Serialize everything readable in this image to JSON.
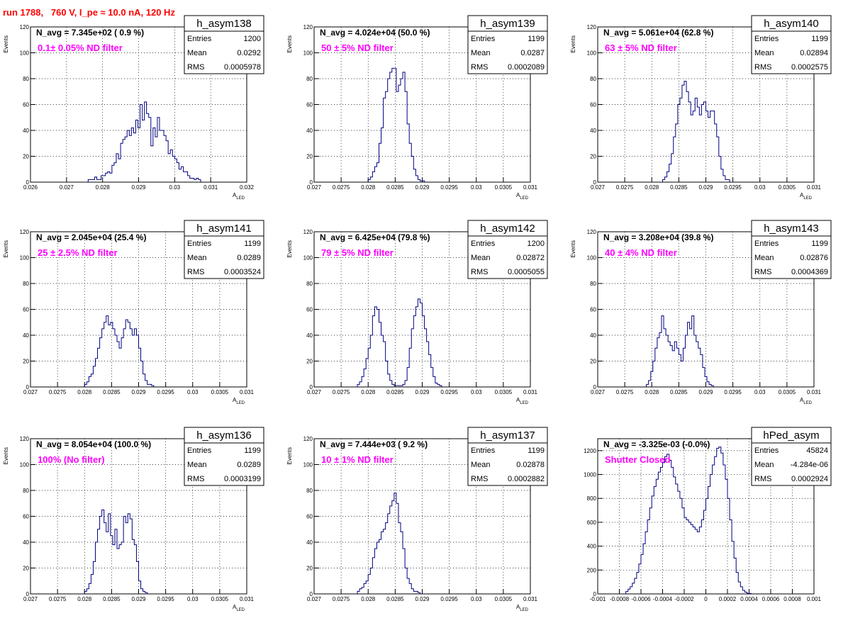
{
  "run_title": "run 1788,   760 V, I_pe ≈ 10.0 nA, 120 Hz",
  "colors": {
    "hist_line": "#000080",
    "title_red": "#ff0000",
    "annot_magenta": "#ff00ff",
    "grid": "#000000"
  },
  "chart_data": [
    {
      "type": "histogram",
      "name": "h_asym138",
      "stats": {
        "Entries": "1200",
        "Mean": "0.0292",
        "RMS": "0.0005978"
      },
      "annotation": "N_avg = 7.345e+02 ( 0.9 %)",
      "filter_label": "0.1± 0.05% ND filter",
      "ylabel": "Events",
      "xlabel": "A_LED",
      "xlim": [
        0.026,
        0.032
      ],
      "ylim": [
        0,
        120
      ],
      "xticks": [
        0.026,
        0.027,
        0.028,
        0.029,
        0.03,
        0.031,
        0.032
      ],
      "xtick_labels": [
        "0.026",
        "0.027",
        "0.028",
        "0.029",
        "0.03",
        "0.031",
        "0.032"
      ],
      "yticks": [
        0,
        20,
        40,
        60,
        80,
        100,
        120
      ],
      "x_start": 0.0276,
      "bin_width": 6e-05,
      "values": [
        2,
        2,
        2,
        4,
        2,
        2,
        5,
        5,
        7,
        8,
        7,
        13,
        15,
        22,
        18,
        30,
        33,
        35,
        40,
        36,
        42,
        38,
        48,
        42,
        60,
        48,
        62,
        53,
        50,
        28,
        42,
        35,
        50,
        40,
        40,
        36,
        32,
        22,
        25,
        20,
        18,
        15,
        10,
        12,
        8,
        8,
        5,
        3,
        3,
        2,
        3,
        2
      ]
    },
    {
      "type": "histogram",
      "name": "h_asym139",
      "stats": {
        "Entries": "1199",
        "Mean": "0.0287",
        "RMS": "0.0002089"
      },
      "annotation": "N_avg = 4.024e+04 (50.0 %)",
      "filter_label": "50 ± 5% ND filter",
      "ylabel": "Events",
      "xlabel": "A_LED",
      "xlim": [
        0.027,
        0.031
      ],
      "ylim": [
        0,
        120
      ],
      "xticks": [
        0.027,
        0.0275,
        0.028,
        0.0285,
        0.029,
        0.0295,
        0.03,
        0.0305,
        0.031
      ],
      "xtick_labels": [
        "0.027",
        "0.0275",
        "0.028",
        "0.0285",
        "0.029",
        "0.0295",
        "0.03",
        "0.0305",
        "0.031"
      ],
      "yticks": [
        0,
        20,
        40,
        60,
        80,
        100,
        120
      ],
      "x_start": 0.028,
      "bin_width": 4e-05,
      "values": [
        2,
        4,
        8,
        12,
        15,
        30,
        42,
        65,
        70,
        80,
        85,
        88,
        88,
        70,
        75,
        80,
        85,
        70,
        45,
        30,
        20,
        10,
        5,
        2,
        1,
        1
      ]
    },
    {
      "type": "histogram",
      "name": "h_asym140",
      "stats": {
        "Entries": "1199",
        "Mean": "0.02894",
        "RMS": "0.0002575"
      },
      "annotation": "N_avg = 5.061e+04 (62.8 %)",
      "filter_label": "63 ± 5% ND filter",
      "ylabel": "Events",
      "xlabel": "A_LED",
      "xlim": [
        0.027,
        0.031
      ],
      "ylim": [
        0,
        120
      ],
      "xticks": [
        0.027,
        0.0275,
        0.028,
        0.0285,
        0.029,
        0.0295,
        0.03,
        0.0305,
        0.031
      ],
      "xtick_labels": [
        "0.027",
        "0.0275",
        "0.028",
        "0.0285",
        "0.029",
        "0.0295",
        "0.03",
        "0.0305",
        "0.031"
      ],
      "yticks": [
        0,
        20,
        40,
        60,
        80,
        100,
        120
      ],
      "x_start": 0.0282,
      "bin_width": 4e-05,
      "values": [
        2,
        4,
        8,
        14,
        22,
        35,
        45,
        60,
        65,
        75,
        78,
        70,
        62,
        52,
        55,
        65,
        58,
        52,
        60,
        62,
        55,
        50,
        55,
        55,
        45,
        35,
        20,
        10,
        5,
        2,
        2
      ]
    },
    {
      "type": "histogram",
      "name": "h_asym141",
      "stats": {
        "Entries": "1199",
        "Mean": "0.0289",
        "RMS": "0.0003524"
      },
      "annotation": "N_avg = 2.045e+04 (25.4 %)",
      "filter_label": "25 ± 2.5% ND filter",
      "ylabel": "Events",
      "xlabel": "A_LED",
      "xlim": [
        0.027,
        0.031
      ],
      "ylim": [
        0,
        120
      ],
      "xticks": [
        0.027,
        0.0275,
        0.028,
        0.0285,
        0.029,
        0.0295,
        0.03,
        0.0305,
        0.031
      ],
      "xtick_labels": [
        "0.027",
        "0.0275",
        "0.028",
        "0.0285",
        "0.029",
        "0.0295",
        "0.03",
        "0.0305",
        "0.031"
      ],
      "yticks": [
        0,
        20,
        40,
        60,
        80,
        100,
        120
      ],
      "x_start": 0.028,
      "bin_width": 4e-05,
      "values": [
        2,
        4,
        8,
        10,
        16,
        22,
        30,
        38,
        45,
        50,
        55,
        48,
        50,
        45,
        40,
        35,
        30,
        38,
        45,
        52,
        50,
        45,
        40,
        45,
        40,
        30,
        20,
        10,
        5,
        2,
        2,
        1
      ]
    },
    {
      "type": "histogram",
      "name": "h_asym142",
      "stats": {
        "Entries": "1200",
        "Mean": "0.02872",
        "RMS": "0.0005055"
      },
      "annotation": "N_avg = 6.425e+04 (79.8 %)",
      "filter_label": "79 ± 5% ND filter",
      "ylabel": "Events",
      "xlabel": "A_LED",
      "xlim": [
        0.027,
        0.031
      ],
      "ylim": [
        0,
        120
      ],
      "xticks": [
        0.027,
        0.0275,
        0.028,
        0.0285,
        0.029,
        0.0295,
        0.03,
        0.0305,
        0.031
      ],
      "xtick_labels": [
        "0.027",
        "0.0275",
        "0.028",
        "0.0285",
        "0.029",
        "0.0295",
        "0.03",
        "0.0305",
        "0.031"
      ],
      "yticks": [
        0,
        20,
        40,
        60,
        80,
        100,
        120
      ],
      "x_start": 0.0278,
      "bin_width": 4e-05,
      "values": [
        2,
        4,
        8,
        14,
        22,
        30,
        40,
        55,
        62,
        60,
        50,
        40,
        35,
        20,
        10,
        5,
        2,
        1,
        1,
        1,
        1,
        2,
        5,
        15,
        30,
        45,
        55,
        62,
        68,
        65,
        55,
        45,
        35,
        25,
        15,
        8,
        3,
        2,
        1
      ]
    },
    {
      "type": "histogram",
      "name": "h_asym143",
      "stats": {
        "Entries": "1199",
        "Mean": "0.02876",
        "RMS": "0.0004369"
      },
      "annotation": "N_avg = 3.208e+04 (39.8 %)",
      "filter_label": "40 ± 4% ND filter",
      "ylabel": "Events",
      "xlabel": "A_LED",
      "xlim": [
        0.027,
        0.031
      ],
      "ylim": [
        0,
        120
      ],
      "xticks": [
        0.027,
        0.0275,
        0.028,
        0.0285,
        0.029,
        0.0295,
        0.03,
        0.0305,
        0.031
      ],
      "xtick_labels": [
        "0.027",
        "0.0275",
        "0.028",
        "0.0285",
        "0.029",
        "0.0295",
        "0.03",
        "0.0305",
        "0.031"
      ],
      "yticks": [
        0,
        20,
        40,
        60,
        80,
        100,
        120
      ],
      "x_start": 0.0279,
      "bin_width": 4e-05,
      "values": [
        2,
        5,
        12,
        20,
        30,
        38,
        42,
        55,
        45,
        40,
        35,
        32,
        28,
        35,
        30,
        25,
        20,
        30,
        40,
        50,
        45,
        55,
        40,
        35,
        30,
        25,
        15,
        8,
        4,
        2,
        1
      ]
    },
    {
      "type": "histogram",
      "name": "h_asym136",
      "stats": {
        "Entries": "1199",
        "Mean": "0.0289",
        "RMS": "0.0003199"
      },
      "annotation": "N_avg = 8.054e+04 (100.0 %)",
      "filter_label": "100% (No filter)",
      "ylabel": "Events",
      "xlabel": "A_LED",
      "xlim": [
        0.027,
        0.031
      ],
      "ylim": [
        0,
        120
      ],
      "xticks": [
        0.027,
        0.0275,
        0.028,
        0.0285,
        0.029,
        0.0295,
        0.03,
        0.0305,
        0.031
      ],
      "xtick_labels": [
        "0.027",
        "0.0275",
        "0.028",
        "0.0285",
        "0.029",
        "0.0295",
        "0.03",
        "0.0305",
        "0.031"
      ],
      "yticks": [
        0,
        20,
        40,
        60,
        80,
        100,
        120
      ],
      "x_start": 0.028,
      "bin_width": 4e-05,
      "values": [
        2,
        4,
        8,
        15,
        25,
        40,
        50,
        60,
        65,
        55,
        48,
        62,
        45,
        38,
        50,
        35,
        38,
        40,
        60,
        55,
        62,
        58,
        42,
        38,
        25,
        10,
        4,
        2,
        1
      ]
    },
    {
      "type": "histogram",
      "name": "h_asym137",
      "stats": {
        "Entries": "1199",
        "Mean": "0.02878",
        "RMS": "0.0002882"
      },
      "annotation": "N_avg = 7.444e+03 ( 9.2 %)",
      "filter_label": "10 ± 1% ND filter",
      "ylabel": "Events",
      "xlabel": "A_LED",
      "xlim": [
        0.027,
        0.031
      ],
      "ylim": [
        0,
        120
      ],
      "xticks": [
        0.027,
        0.0275,
        0.028,
        0.0285,
        0.029,
        0.0295,
        0.03,
        0.0305,
        0.031
      ],
      "xtick_labels": [
        "0.027",
        "0.0275",
        "0.028",
        "0.0285",
        "0.029",
        "0.0295",
        "0.03",
        "0.0305",
        "0.031"
      ],
      "yticks": [
        0,
        20,
        40,
        60,
        80,
        100,
        120
      ],
      "x_start": 0.0278,
      "bin_width": 4e-05,
      "values": [
        2,
        4,
        5,
        8,
        10,
        15,
        20,
        28,
        35,
        40,
        42,
        48,
        50,
        55,
        62,
        68,
        72,
        78,
        70,
        55,
        48,
        35,
        20,
        12,
        8,
        4,
        2,
        2,
        1
      ]
    },
    {
      "type": "histogram",
      "name": "hPed_asym",
      "stats": {
        "Entries": "45824",
        "Mean": "-4.284e-06",
        "RMS": "0.0002924"
      },
      "annotation": "N_avg = -3.325e-03 (-0.0%)",
      "filter_label": "Shutter Closed",
      "ylabel": "",
      "xlabel": "",
      "xlim": [
        -0.001,
        0.001
      ],
      "ylim": [
        0,
        1300
      ],
      "xticks": [
        -0.001,
        -0.0008,
        -0.0006,
        -0.0004,
        -0.0002,
        0,
        0.0002,
        0.0004,
        0.0006,
        0.0008,
        0.001
      ],
      "xtick_labels": [
        "-0.001",
        "-0.0008",
        "-0.0006",
        "-0.0004",
        "-0.0002",
        "0",
        "0.0002",
        "0.0004",
        "0.0006",
        "0.0008",
        "0.001"
      ],
      "yticks": [
        0,
        200,
        400,
        600,
        800,
        1000,
        1200
      ],
      "x_start": -0.00074,
      "bin_width": 2e-05,
      "values": [
        20,
        40,
        60,
        90,
        130,
        180,
        250,
        330,
        420,
        520,
        620,
        720,
        820,
        900,
        960,
        1020,
        1060,
        1100,
        1150,
        1170,
        1120,
        1060,
        980,
        920,
        860,
        800,
        720,
        640,
        620,
        600,
        580,
        560,
        540,
        520,
        560,
        620,
        700,
        800,
        900,
        1000,
        1080,
        1150,
        1220,
        1230,
        1180,
        1080,
        960,
        800,
        620,
        440,
        300,
        180,
        100,
        60,
        30,
        15,
        5,
        3
      ]
    }
  ]
}
